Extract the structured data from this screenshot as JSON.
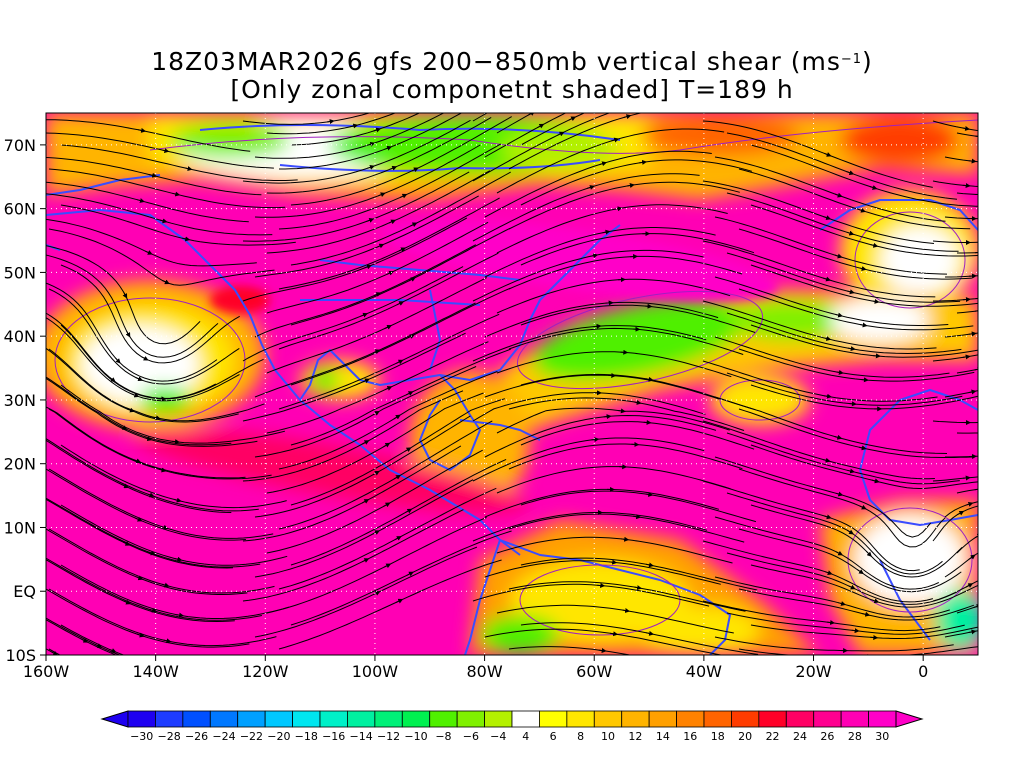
{
  "title": {
    "line1_prefix": "18Z03MAR2026 gfs 200−850mb vertical shear (ms",
    "line1_exponent": "−1",
    "line1_suffix": ")",
    "line2": "[Only zonal componetnt shaded] T=189 h"
  },
  "map": {
    "projection": "lat-lon",
    "lon_range": [
      -160,
      10
    ],
    "lat_range": [
      -10,
      75
    ],
    "lat_ticks": [
      {
        "value": 70,
        "label": "70N"
      },
      {
        "value": 60,
        "label": "60N"
      },
      {
        "value": 50,
        "label": "50N"
      },
      {
        "value": 40,
        "label": "40N"
      },
      {
        "value": 30,
        "label": "30N"
      },
      {
        "value": 20,
        "label": "20N"
      },
      {
        "value": 10,
        "label": "10N"
      },
      {
        "value": 0,
        "label": "EQ"
      },
      {
        "value": -10,
        "label": "10S"
      }
    ],
    "lon_ticks": [
      {
        "value": -160,
        "label": "160W"
      },
      {
        "value": -140,
        "label": "140W"
      },
      {
        "value": -120,
        "label": "120W"
      },
      {
        "value": -100,
        "label": "100W"
      },
      {
        "value": -80,
        "label": "80W"
      },
      {
        "value": -60,
        "label": "60W"
      },
      {
        "value": -40,
        "label": "40W"
      },
      {
        "value": -20,
        "label": "20W"
      },
      {
        "value": 0,
        "label": "0"
      }
    ],
    "gridlines": "dotted white",
    "coastline_color": "#3a4cff",
    "streamline_color": "#000000",
    "contour_color": "#a020c0"
  },
  "colorbar": {
    "levels": [
      -30,
      -28,
      -26,
      -24,
      -22,
      -20,
      -18,
      -16,
      -14,
      -12,
      -10,
      -8,
      -6,
      -4,
      4,
      6,
      8,
      10,
      12,
      14,
      16,
      18,
      20,
      22,
      24,
      26,
      28,
      30
    ],
    "labels": [
      "−30",
      "−28",
      "−26",
      "−24",
      "−22",
      "−20",
      "−18",
      "−16",
      "−14",
      "−12",
      "−10",
      "−8",
      "−6",
      "−4",
      "4",
      "6",
      "8",
      "10",
      "12",
      "14",
      "16",
      "18",
      "20",
      "22",
      "24",
      "26",
      "28",
      "30"
    ],
    "colors": [
      "#1e00f0",
      "#1e3cff",
      "#0050ff",
      "#0078ff",
      "#00a0ff",
      "#00c8ff",
      "#00e6f0",
      "#00f0c8",
      "#00f0a0",
      "#00f078",
      "#00f050",
      "#50f000",
      "#80f000",
      "#b4f000",
      "#ffffff",
      "#ffff00",
      "#ffe600",
      "#ffc800",
      "#ffb400",
      "#ffa000",
      "#ff8200",
      "#ff6400",
      "#ff3c00",
      "#ff0028",
      "#ff0064",
      "#ff0090",
      "#ff00b4",
      "#ff00c8"
    ]
  }
}
